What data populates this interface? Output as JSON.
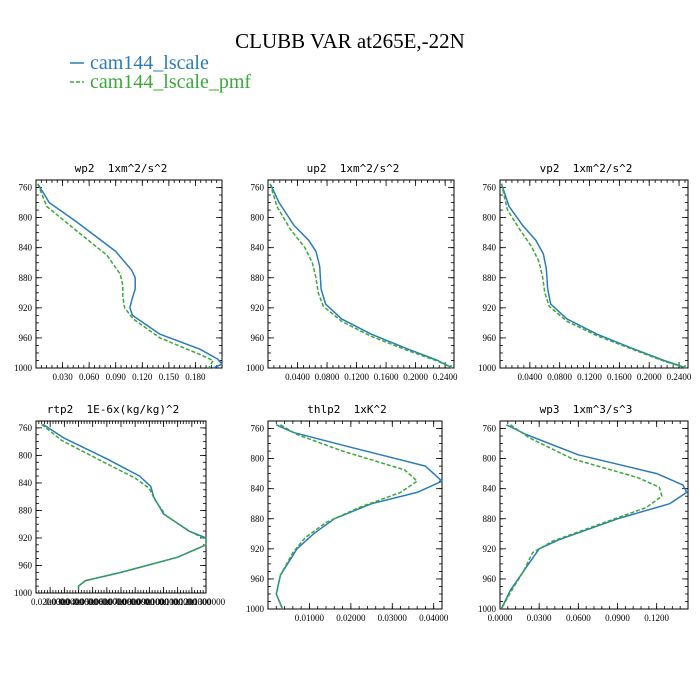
{
  "figure": {
    "title": "CLUBB VAR at265E,-22N"
  },
  "colors": {
    "cam144_lscale": "#2b7bb9",
    "cam144_lscale_pmf": "#3aa83a"
  },
  "legend": [
    {
      "label": "cam144_lscale",
      "color": "#2b7bb9",
      "dash": "solid"
    },
    {
      "label": "cam144_lscale_pmf",
      "color": "#3aa83a",
      "dash": "dashed"
    }
  ],
  "chart_data": [
    {
      "type": "line",
      "title": "wp2  1xm^2/s^2",
      "xlim": [
        0.0,
        0.21
      ],
      "ylim": [
        1000,
        750
      ],
      "xticks": [
        0.03,
        0.06,
        0.09,
        0.12,
        0.15,
        0.18
      ],
      "xtick_labels": [
        "0.030",
        "0.060",
        "0.090",
        "0.120",
        "0.150",
        "0.180"
      ],
      "yticks": [
        760,
        800,
        840,
        880,
        920,
        960,
        1000
      ],
      "series": [
        {
          "name": "cam144_lscale",
          "x": [
            0.002,
            0.015,
            0.045,
            0.09,
            0.108,
            0.112,
            0.112,
            0.108,
            0.106,
            0.109,
            0.14,
            0.185,
            0.205,
            0.21,
            0.2
          ],
          "y": [
            755,
            780,
            805,
            845,
            870,
            880,
            895,
            910,
            920,
            930,
            955,
            975,
            988,
            995,
            1000
          ]
        },
        {
          "name": "cam144_lscale_pmf",
          "x": [
            0.002,
            0.012,
            0.04,
            0.08,
            0.095,
            0.098,
            0.098,
            0.1,
            0.11,
            0.14,
            0.185,
            0.2,
            0.195
          ],
          "y": [
            755,
            785,
            812,
            850,
            875,
            890,
            905,
            920,
            935,
            960,
            982,
            990,
            1000
          ]
        }
      ]
    },
    {
      "type": "line",
      "title": "up2  1xm^2/s^2",
      "xlim": [
        0.0,
        0.252
      ],
      "ylim": [
        1000,
        750
      ],
      "xticks": [
        0.04,
        0.08,
        0.12,
        0.16,
        0.2,
        0.24
      ],
      "xtick_labels": [
        "0.0400",
        "0.0800",
        "0.1200",
        "0.1600",
        "0.2000",
        "0.2400"
      ],
      "yticks": [
        760,
        800,
        840,
        880,
        920,
        960,
        1000
      ],
      "series": [
        {
          "name": "cam144_lscale",
          "x": [
            0.003,
            0.015,
            0.035,
            0.055,
            0.065,
            0.07,
            0.072,
            0.078,
            0.1,
            0.14,
            0.19,
            0.23,
            0.25
          ],
          "y": [
            755,
            780,
            810,
            830,
            845,
            865,
            895,
            915,
            935,
            955,
            975,
            990,
            1000
          ]
        },
        {
          "name": "cam144_lscale_pmf",
          "x": [
            0.003,
            0.012,
            0.03,
            0.05,
            0.06,
            0.065,
            0.068,
            0.075,
            0.1,
            0.14,
            0.19,
            0.23,
            0.25
          ],
          "y": [
            755,
            785,
            815,
            840,
            860,
            880,
            900,
            918,
            938,
            958,
            977,
            991,
            1000
          ]
        }
      ]
    },
    {
      "type": "line",
      "title": "vp2  1xm^2/s^2",
      "xlim": [
        0.0,
        0.252
      ],
      "ylim": [
        1000,
        750
      ],
      "xticks": [
        0.04,
        0.08,
        0.12,
        0.16,
        0.2,
        0.24
      ],
      "xtick_labels": [
        "0.0400",
        "0.0800",
        "0.1200",
        "0.1600",
        "0.2000",
        "0.2400"
      ],
      "yticks": [
        760,
        800,
        840,
        880,
        920,
        960,
        1000
      ],
      "series": [
        {
          "name": "cam144_lscale",
          "x": [
            0.002,
            0.012,
            0.03,
            0.048,
            0.058,
            0.062,
            0.064,
            0.068,
            0.09,
            0.13,
            0.18,
            0.22,
            0.25
          ],
          "y": [
            755,
            785,
            810,
            830,
            848,
            868,
            895,
            915,
            935,
            955,
            975,
            990,
            1000
          ]
        },
        {
          "name": "cam144_lscale_pmf",
          "x": [
            0.002,
            0.01,
            0.026,
            0.042,
            0.052,
            0.057,
            0.06,
            0.066,
            0.09,
            0.13,
            0.18,
            0.22,
            0.25
          ],
          "y": [
            755,
            790,
            815,
            838,
            858,
            878,
            900,
            918,
            938,
            957,
            976,
            991,
            1000
          ]
        }
      ]
    },
    {
      "type": "line",
      "title": "rtp2  1E-6x(kg/kg)^2",
      "xlim": [
        0.01,
        0.13
      ],
      "ylim": [
        1000,
        750
      ],
      "xticks": [
        0.02,
        0.03,
        0.04,
        0.05,
        0.06,
        0.07,
        0.08,
        0.09,
        0.1,
        0.11,
        0.12,
        0.13
      ],
      "xtick_labels": [
        "0.0200000",
        "0.0300000",
        "0.0400000",
        "0.0500000",
        "0.0600000",
        "0.0700000",
        "0.0800000",
        "0.0900000",
        "0.1000000",
        "0.1100000",
        "0.1200000",
        "0.1300000"
      ],
      "yticks": [
        760,
        800,
        840,
        880,
        920,
        960,
        1000
      ],
      "series": [
        {
          "name": "cam144_lscale",
          "x": [
            0.015,
            0.03,
            0.06,
            0.083,
            0.091,
            0.093,
            0.1,
            0.118,
            0.13,
            0.13,
            0.11,
            0.07,
            0.045,
            0.04,
            0.04
          ],
          "y": [
            755,
            775,
            805,
            830,
            845,
            860,
            885,
            910,
            920,
            930,
            948,
            970,
            982,
            990,
            995
          ]
        },
        {
          "name": "cam144_lscale_pmf",
          "x": [
            0.014,
            0.028,
            0.056,
            0.08,
            0.09,
            0.094,
            0.102,
            0.12,
            0.13,
            0.13,
            0.11,
            0.07,
            0.045,
            0.04,
            0.04
          ],
          "y": [
            755,
            778,
            808,
            833,
            848,
            865,
            888,
            912,
            922,
            930,
            948,
            970,
            982,
            990,
            995
          ]
        }
      ]
    },
    {
      "type": "line",
      "title": "thlp2  1xK^2",
      "xlim": [
        0.0,
        0.042
      ],
      "ylim": [
        1000,
        750
      ],
      "xticks": [
        0.01,
        0.02,
        0.03,
        0.04
      ],
      "xtick_labels": [
        "0.01000",
        "0.02000",
        "0.03000",
        "0.04000"
      ],
      "yticks": [
        760,
        800,
        840,
        880,
        920,
        960,
        1000
      ],
      "series": [
        {
          "name": "cam144_lscale",
          "x": [
            0.002,
            0.006,
            0.02,
            0.038,
            0.042,
            0.036,
            0.025,
            0.016,
            0.011,
            0.007,
            0.003,
            0.002,
            0.0035
          ],
          "y": [
            755,
            765,
            785,
            810,
            830,
            845,
            860,
            880,
            900,
            920,
            955,
            980,
            1000
          ]
        },
        {
          "name": "cam144_lscale_pmf",
          "x": [
            0.003,
            0.007,
            0.018,
            0.033,
            0.036,
            0.032,
            0.022,
            0.014,
            0.009,
            0.006,
            0.003,
            0.002,
            0.0035
          ],
          "y": [
            755,
            768,
            790,
            815,
            830,
            845,
            865,
            885,
            905,
            925,
            955,
            980,
            1000
          ]
        }
      ]
    },
    {
      "type": "line",
      "title": "wp3  1xm^3/s^3",
      "xlim": [
        0.0,
        0.144
      ],
      "ylim": [
        1000,
        750
      ],
      "xticks": [
        0.0,
        0.03,
        0.06,
        0.09,
        0.12
      ],
      "xtick_labels": [
        "0.0000",
        "0.0300",
        "0.0600",
        "0.0900",
        "0.1200"
      ],
      "yticks": [
        760,
        800,
        840,
        880,
        920,
        960,
        1000
      ],
      "series": [
        {
          "name": "cam144_lscale",
          "x": [
            0.005,
            0.02,
            0.06,
            0.12,
            0.14,
            0.143,
            0.13,
            0.09,
            0.045,
            0.03,
            0.02,
            0.008,
            0.001
          ],
          "y": [
            755,
            768,
            795,
            820,
            835,
            845,
            860,
            880,
            908,
            920,
            945,
            975,
            1000
          ]
        },
        {
          "name": "cam144_lscale_pmf",
          "x": [
            0.008,
            0.022,
            0.055,
            0.105,
            0.122,
            0.124,
            0.112,
            0.08,
            0.04,
            0.025,
            0.018,
            0.008,
            0.001
          ],
          "y": [
            755,
            772,
            800,
            825,
            838,
            850,
            865,
            885,
            910,
            925,
            950,
            978,
            1000
          ]
        }
      ]
    }
  ]
}
